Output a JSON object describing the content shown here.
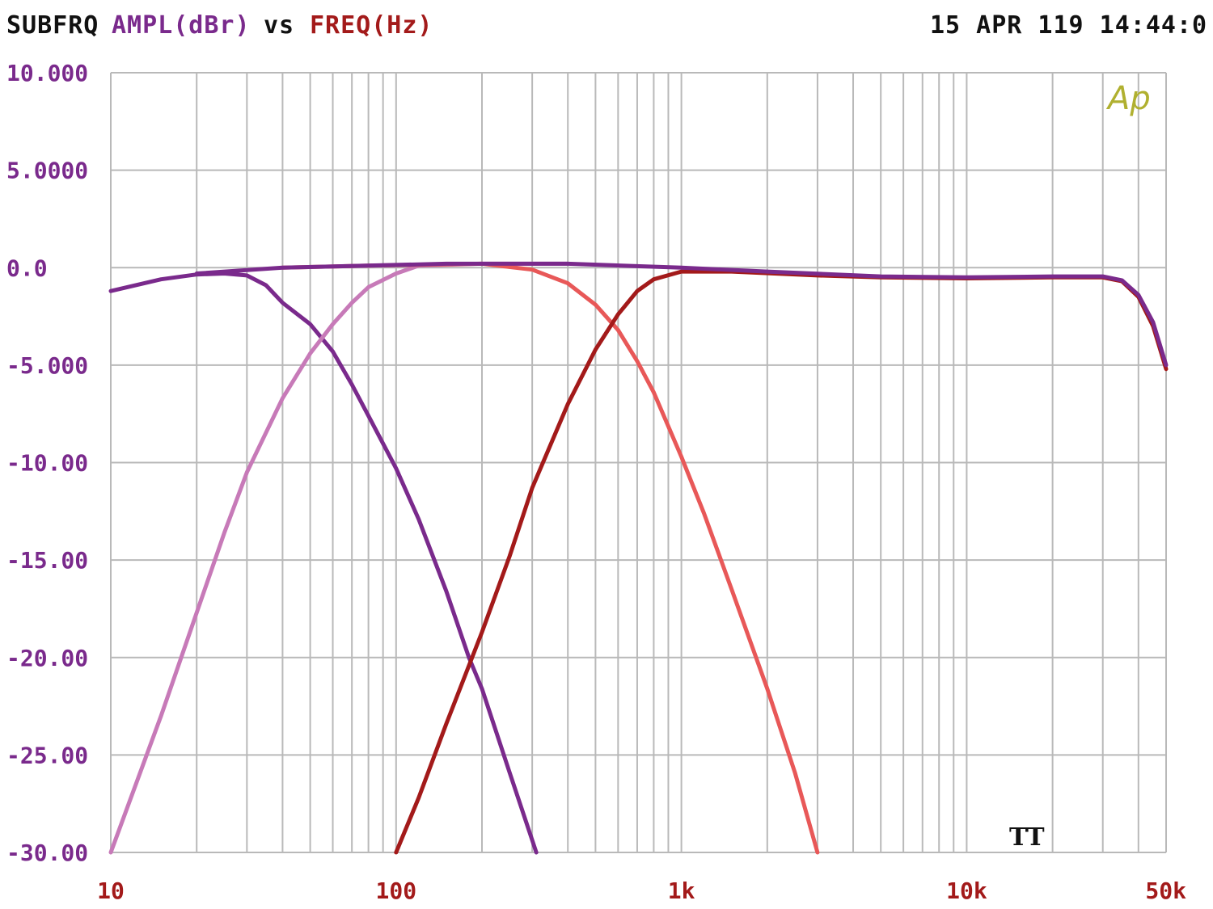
{
  "header": {
    "label": "SUBFRQ",
    "y_quantity": "AMPL(dBr)",
    "vs": "vs",
    "x_quantity": "FREQ(Hz)",
    "timestamp": "15 APR 119 14:44:0"
  },
  "logo_text": "Ap",
  "marker_text": "TT",
  "colors": {
    "header_label": "#111111",
    "y_quantity": "#7a2a8c",
    "x_quantity": "#a31a1a",
    "grid": "#b9b9b9",
    "logo": "#b0b030"
  },
  "chart_data": {
    "type": "line",
    "x_scale": "log",
    "xlim": [
      10,
      50000
    ],
    "ylim": [
      -30,
      10
    ],
    "grid": true,
    "ytick_values": [
      10,
      5,
      0,
      -5,
      -10,
      -15,
      -20,
      -25,
      -30
    ],
    "ytick_labels": [
      "10.000",
      "5.0000",
      "0.0",
      "-5.000",
      "-10.00",
      "-15.00",
      "-20.00",
      "-25.00",
      "-30.00"
    ],
    "xtick_values": [
      10,
      100,
      1000,
      10000,
      50000
    ],
    "xtick_labels": [
      "10",
      "100",
      "1k",
      "10k",
      "50k"
    ],
    "series": [
      {
        "color": "#7a2a8c",
        "width": 5,
        "points": [
          [
            10,
            -1.2
          ],
          [
            15,
            -0.6
          ],
          [
            20,
            -0.35
          ],
          [
            25,
            -0.3
          ],
          [
            30,
            -0.4
          ],
          [
            35,
            -0.9
          ],
          [
            40,
            -1.8
          ],
          [
            50,
            -2.9
          ],
          [
            60,
            -4.3
          ],
          [
            70,
            -6.0
          ],
          [
            80,
            -7.6
          ],
          [
            100,
            -10.3
          ],
          [
            120,
            -12.9
          ],
          [
            150,
            -16.6
          ],
          [
            180,
            -20.0
          ],
          [
            200,
            -21.6
          ],
          [
            250,
            -25.9
          ],
          [
            310,
            -30
          ]
        ]
      },
      {
        "color": "#c77ab8",
        "width": 5,
        "points": [
          [
            10,
            -30
          ],
          [
            15,
            -23.0
          ],
          [
            20,
            -17.7
          ],
          [
            25,
            -13.6
          ],
          [
            30,
            -10.5
          ],
          [
            40,
            -6.7
          ],
          [
            50,
            -4.4
          ],
          [
            60,
            -2.9
          ],
          [
            70,
            -1.8
          ],
          [
            80,
            -1.0
          ],
          [
            100,
            -0.3
          ],
          [
            120,
            0.1
          ],
          [
            200,
            0.2
          ],
          [
            400,
            0.2
          ]
        ]
      },
      {
        "color": "#e85858",
        "width": 5,
        "points": [
          [
            40,
            0.0
          ],
          [
            80,
            0.1
          ],
          [
            200,
            0.2
          ],
          [
            300,
            -0.1
          ],
          [
            400,
            -0.8
          ],
          [
            500,
            -1.9
          ],
          [
            600,
            -3.2
          ],
          [
            700,
            -4.8
          ],
          [
            800,
            -6.4
          ],
          [
            1000,
            -9.7
          ],
          [
            1200,
            -12.6
          ],
          [
            1500,
            -16.5
          ],
          [
            2000,
            -21.6
          ],
          [
            2500,
            -25.9
          ],
          [
            3000,
            -30
          ]
        ]
      },
      {
        "color": "#a31a1a",
        "width": 5,
        "points": [
          [
            100,
            -30
          ],
          [
            120,
            -27.2
          ],
          [
            150,
            -23.4
          ],
          [
            200,
            -18.7
          ],
          [
            250,
            -14.8
          ],
          [
            300,
            -11.3
          ],
          [
            400,
            -7.0
          ],
          [
            500,
            -4.2
          ],
          [
            600,
            -2.4
          ],
          [
            700,
            -1.2
          ],
          [
            800,
            -0.6
          ],
          [
            1000,
            -0.2
          ],
          [
            1500,
            -0.2
          ],
          [
            3000,
            -0.4
          ],
          [
            5000,
            -0.5
          ],
          [
            10000,
            -0.55
          ],
          [
            20000,
            -0.5
          ],
          [
            30000,
            -0.5
          ],
          [
            35000,
            -0.7
          ],
          [
            40000,
            -1.5
          ],
          [
            45000,
            -3.0
          ],
          [
            50000,
            -5.2
          ]
        ]
      },
      {
        "color": "#7a2a8c",
        "width": 5,
        "points": [
          [
            20,
            -0.3
          ],
          [
            40,
            0.0
          ],
          [
            150,
            0.2
          ],
          [
            400,
            0.2
          ],
          [
            1000,
            0.0
          ],
          [
            2000,
            -0.2
          ],
          [
            5000,
            -0.45
          ],
          [
            10000,
            -0.5
          ],
          [
            20000,
            -0.45
          ],
          [
            30000,
            -0.45
          ],
          [
            35000,
            -0.65
          ],
          [
            40000,
            -1.4
          ],
          [
            45000,
            -2.8
          ],
          [
            50000,
            -5.0
          ]
        ]
      }
    ]
  }
}
